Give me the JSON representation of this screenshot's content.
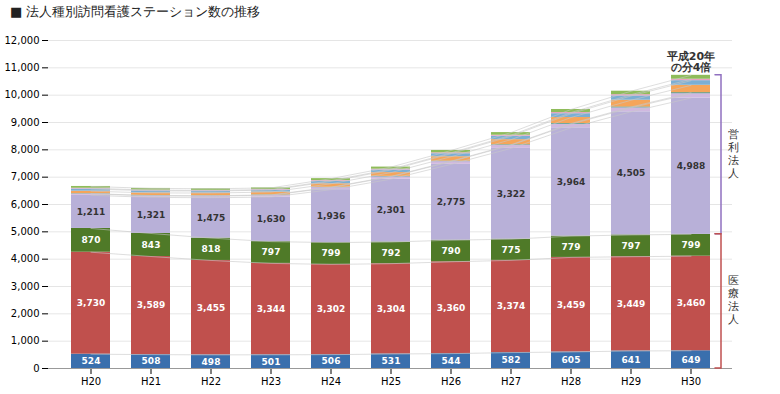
{
  "chart_data": {
    "type": "bar",
    "title": "■ 法人種別訪問看護ステーション数の推移",
    "stacked": true,
    "grid": true,
    "categories": [
      "H20",
      "H21",
      "H22",
      "H23",
      "H24",
      "H25",
      "H26",
      "H27",
      "H28",
      "H29",
      "H30"
    ],
    "series": [
      {
        "color": "#3a6fad",
        "data_labels": true,
        "values": [
          524,
          508,
          498,
          501,
          506,
          531,
          544,
          582,
          605,
          641,
          649
        ]
      },
      {
        "color": "#c0504d",
        "data_labels": true,
        "values": [
          3730,
          3589,
          3455,
          3344,
          3302,
          3304,
          3360,
          3374,
          3459,
          3449,
          3460
        ],
        "value_labels": [
          "3,730",
          "3,589",
          "3,455",
          "3,344",
          "3,302",
          "3,304",
          "3,360",
          "3,374",
          "3,459",
          "3,449",
          "3,460"
        ]
      },
      {
        "color": "#4f7a28",
        "data_labels": true,
        "values": [
          870,
          843,
          818,
          797,
          799,
          792,
          790,
          775,
          779,
          797,
          799
        ]
      },
      {
        "color": "#b8b0d8",
        "data_labels": true,
        "values": [
          1211,
          1321,
          1475,
          1630,
          1936,
          2301,
          2775,
          3322,
          3964,
          4505,
          4988
        ],
        "value_labels": [
          "1,211",
          "1,321",
          "1,475",
          "1,630",
          "1,936",
          "2,301",
          "2,775",
          "3,322",
          "3,964",
          "4,505",
          "4,988"
        ]
      },
      {
        "color": "#d0b8e0",
        "values": [
          50,
          55,
          60,
          65,
          75,
          85,
          100,
          115,
          130,
          145,
          158
        ]
      },
      {
        "color": "#2e8b7a",
        "values": [
          12,
          13,
          13,
          14,
          15,
          16,
          17,
          19,
          25,
          30,
          35
        ]
      },
      {
        "color": "#f5a55a",
        "values": [
          90,
          95,
          100,
          105,
          125,
          138,
          162,
          185,
          220,
          248,
          272
        ]
      },
      {
        "color": "#7bafd4",
        "values": [
          80,
          76,
          73,
          71,
          89,
          96,
          110,
          125,
          140,
          156,
          170
        ]
      },
      {
        "color": "#e8a0c0",
        "values": [
          27,
          25,
          23,
          22,
          27,
          29,
          32,
          37,
          42,
          47,
          52
        ]
      },
      {
        "color": "#8fbc5a",
        "values": [
          66,
          63,
          61,
          58,
          72,
          77,
          87,
          97,
          112,
          127,
          143
        ]
      }
    ],
    "ylim": [
      0,
      12000
    ],
    "yticks": [
      0,
      {
        "value": 1000,
        "label": "1,000"
      },
      {
        "value": 2000,
        "label": "2,000"
      },
      {
        "value": 3000,
        "label": "3,000"
      },
      {
        "value": 4000,
        "label": "4,000"
      },
      {
        "value": 5000,
        "label": "5,000"
      },
      {
        "value": 6000,
        "label": "6,000"
      },
      {
        "value": 7000,
        "label": "7,000"
      },
      {
        "value": 8000,
        "label": "8,000"
      },
      {
        "value": 9000,
        "label": "9,000"
      },
      {
        "value": 10000,
        "label": "10,000"
      },
      {
        "value": 11000,
        "label": "11,000"
      },
      {
        "value": 12000,
        "label": "12,000"
      }
    ],
    "annotations": [
      {
        "text": "平成20年\nの分4倍"
      },
      {
        "text": "営\n利\n法\n人",
        "color": "#9070c0"
      },
      {
        "text": "医\n療\n法\n人",
        "color": "#c05050"
      }
    ]
  }
}
